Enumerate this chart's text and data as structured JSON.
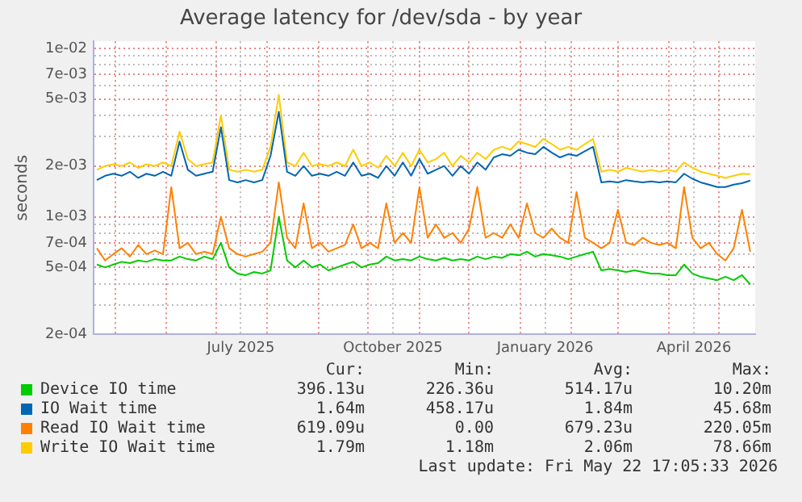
{
  "chart_data": {
    "type": "line",
    "title": "Average latency for /dev/sda - by year",
    "ylabel": "seconds",
    "log": "y",
    "grid": true,
    "legend": "bottom",
    "xlim": [
      "2025-04-18",
      "2026-05-23"
    ],
    "ylim": [
      0.0002,
      0.011
    ],
    "xticks": [
      {
        "value": "2025-05-01",
        "label": null
      },
      {
        "value": "2025-06-01",
        "label": null
      },
      {
        "value": "2025-07-01",
        "label": null
      },
      {
        "value": "2025-07-16",
        "label": "July 2025"
      },
      {
        "value": "2025-08-01",
        "label": null
      },
      {
        "value": "2025-09-01",
        "label": null
      },
      {
        "value": "2025-10-01",
        "label": null
      },
      {
        "value": "2025-10-16",
        "label": "October 2025"
      },
      {
        "value": "2025-11-01",
        "label": null
      },
      {
        "value": "2025-12-01",
        "label": null
      },
      {
        "value": "2026-01-01",
        "label": null
      },
      {
        "value": "2026-01-16",
        "label": "January 2026"
      },
      {
        "value": "2026-02-01",
        "label": null
      },
      {
        "value": "2026-03-01",
        "label": null
      },
      {
        "value": "2026-04-01",
        "label": null
      },
      {
        "value": "2026-04-16",
        "label": "April 2026"
      },
      {
        "value": "2026-05-01",
        "label": null
      }
    ],
    "yticks": [
      {
        "value": 0.0002,
        "label": "2e-04"
      },
      {
        "value": 0.0003,
        "label": null
      },
      {
        "value": 0.0004,
        "label": null
      },
      {
        "value": 0.0005,
        "label": "5e-04"
      },
      {
        "value": 0.0006,
        "label": null
      },
      {
        "value": 0.0007,
        "label": "7e-04"
      },
      {
        "value": 0.0008,
        "label": null
      },
      {
        "value": 0.0009,
        "label": null
      },
      {
        "value": 0.001,
        "label": "1e-03"
      },
      {
        "value": 0.002,
        "label": "2e-03"
      },
      {
        "value": 0.003,
        "label": null
      },
      {
        "value": 0.004,
        "label": null
      },
      {
        "value": 0.005,
        "label": "5e-03"
      },
      {
        "value": 0.006,
        "label": null
      },
      {
        "value": 0.007,
        "label": "7e-03"
      },
      {
        "value": 0.008,
        "label": null
      },
      {
        "value": 0.009,
        "label": null
      },
      {
        "value": 0.01,
        "label": "1e-02"
      }
    ],
    "x": [
      "2025-04-20",
      "2025-04-25",
      "2025-04-30",
      "2025-05-05",
      "2025-05-10",
      "2025-05-15",
      "2025-05-20",
      "2025-05-25",
      "2025-05-30",
      "2025-06-04",
      "2025-06-09",
      "2025-06-14",
      "2025-06-19",
      "2025-06-24",
      "2025-06-29",
      "2025-07-04",
      "2025-07-09",
      "2025-07-14",
      "2025-07-19",
      "2025-07-24",
      "2025-07-29",
      "2025-08-03",
      "2025-08-08",
      "2025-08-13",
      "2025-08-18",
      "2025-08-23",
      "2025-08-28",
      "2025-09-02",
      "2025-09-07",
      "2025-09-12",
      "2025-09-17",
      "2025-09-22",
      "2025-09-27",
      "2025-10-02",
      "2025-10-07",
      "2025-10-12",
      "2025-10-17",
      "2025-10-22",
      "2025-10-27",
      "2025-11-01",
      "2025-11-06",
      "2025-11-11",
      "2025-11-16",
      "2025-11-21",
      "2025-11-26",
      "2025-12-01",
      "2025-12-06",
      "2025-12-11",
      "2025-12-16",
      "2025-12-21",
      "2025-12-26",
      "2025-12-31",
      "2026-01-05",
      "2026-01-10",
      "2026-01-15",
      "2026-01-20",
      "2026-01-25",
      "2026-01-30",
      "2026-02-04",
      "2026-02-09",
      "2026-02-14",
      "2026-02-19",
      "2026-02-24",
      "2026-03-01",
      "2026-03-06",
      "2026-03-11",
      "2026-03-16",
      "2026-03-21",
      "2026-03-26",
      "2026-03-31",
      "2026-04-05",
      "2026-04-10",
      "2026-04-15",
      "2026-04-20",
      "2026-04-25",
      "2026-04-30",
      "2026-05-05",
      "2026-05-10",
      "2026-05-15",
      "2026-05-20"
    ],
    "series": [
      {
        "name": "Device IO time",
        "color": "#00cc00",
        "values": [
          0.00052,
          0.0005,
          0.00052,
          0.00054,
          0.00053,
          0.00055,
          0.00054,
          0.00056,
          0.00055,
          0.00055,
          0.00058,
          0.00056,
          0.00055,
          0.00058,
          0.00056,
          0.0007,
          0.0005,
          0.00046,
          0.00045,
          0.00047,
          0.00046,
          0.00048,
          0.001,
          0.00055,
          0.0005,
          0.00055,
          0.0005,
          0.00052,
          0.00048,
          0.0005,
          0.00052,
          0.00054,
          0.0005,
          0.00052,
          0.00053,
          0.00058,
          0.00055,
          0.00056,
          0.00055,
          0.00058,
          0.00056,
          0.00055,
          0.00057,
          0.00055,
          0.00056,
          0.00055,
          0.00058,
          0.00056,
          0.00058,
          0.00057,
          0.0006,
          0.00059,
          0.00062,
          0.00058,
          0.0006,
          0.00059,
          0.00058,
          0.00056,
          0.00058,
          0.0006,
          0.00062,
          0.00048,
          0.00049,
          0.00048,
          0.00047,
          0.00048,
          0.00047,
          0.00046,
          0.00046,
          0.00045,
          0.00045,
          0.00052,
          0.00046,
          0.00044,
          0.00043,
          0.00042,
          0.00044,
          0.00042,
          0.00045,
          0.000396
        ]
      },
      {
        "name": "IO Wait time",
        "color": "#0066b3",
        "values": [
          0.00165,
          0.00175,
          0.0018,
          0.00175,
          0.00185,
          0.0017,
          0.0018,
          0.00175,
          0.00185,
          0.00175,
          0.0028,
          0.0019,
          0.00175,
          0.0018,
          0.00185,
          0.0034,
          0.00165,
          0.0016,
          0.00165,
          0.0016,
          0.00165,
          0.0023,
          0.0042,
          0.00185,
          0.00175,
          0.002,
          0.00175,
          0.0018,
          0.00175,
          0.00185,
          0.00175,
          0.0021,
          0.00175,
          0.0018,
          0.0017,
          0.002,
          0.00175,
          0.0021,
          0.00175,
          0.0022,
          0.0018,
          0.0019,
          0.002,
          0.00175,
          0.002,
          0.0018,
          0.0021,
          0.0019,
          0.00225,
          0.00235,
          0.0023,
          0.0025,
          0.0024,
          0.00235,
          0.0026,
          0.0024,
          0.00225,
          0.00235,
          0.0023,
          0.00245,
          0.0026,
          0.0016,
          0.00162,
          0.0016,
          0.00165,
          0.00162,
          0.0016,
          0.00162,
          0.0016,
          0.00162,
          0.0016,
          0.0018,
          0.00168,
          0.0016,
          0.00155,
          0.0015,
          0.0015,
          0.00155,
          0.00158,
          0.00164
        ]
      },
      {
        "name": "Read IO Wait time",
        "color": "#ff8000",
        "values": [
          0.00065,
          0.00055,
          0.0006,
          0.00065,
          0.00058,
          0.00068,
          0.0006,
          0.00063,
          0.0006,
          0.0015,
          0.00065,
          0.0007,
          0.0006,
          0.00062,
          0.0006,
          0.001,
          0.00065,
          0.0006,
          0.00058,
          0.0006,
          0.00062,
          0.0007,
          0.0016,
          0.00075,
          0.00065,
          0.0012,
          0.00065,
          0.0007,
          0.00062,
          0.00065,
          0.00068,
          0.0009,
          0.00065,
          0.0007,
          0.00065,
          0.0012,
          0.0007,
          0.0008,
          0.0007,
          0.0015,
          0.00075,
          0.0009,
          0.00075,
          0.0008,
          0.0007,
          0.00085,
          0.0015,
          0.00075,
          0.0008,
          0.00075,
          0.0009,
          0.00075,
          0.0012,
          0.0008,
          0.00075,
          0.00085,
          0.00075,
          0.0007,
          0.0014,
          0.00075,
          0.0007,
          0.00065,
          0.0007,
          0.0011,
          0.0007,
          0.00068,
          0.00075,
          0.0007,
          0.00068,
          0.0007,
          0.00065,
          0.0015,
          0.00075,
          0.00065,
          0.0007,
          0.0006,
          0.00055,
          0.00065,
          0.0011,
          0.000619
        ]
      },
      {
        "name": "Write IO Wait time",
        "color": "#ffcc00",
        "values": [
          0.0019,
          0.002,
          0.00205,
          0.002,
          0.0021,
          0.00195,
          0.00205,
          0.002,
          0.0021,
          0.002,
          0.0032,
          0.0022,
          0.002,
          0.00205,
          0.0021,
          0.004,
          0.0019,
          0.00185,
          0.0019,
          0.00185,
          0.0019,
          0.0026,
          0.0053,
          0.0021,
          0.002,
          0.0024,
          0.002,
          0.00205,
          0.002,
          0.0021,
          0.002,
          0.0025,
          0.002,
          0.0021,
          0.00195,
          0.0023,
          0.002,
          0.0024,
          0.002,
          0.0025,
          0.0021,
          0.0022,
          0.0024,
          0.002,
          0.0023,
          0.0021,
          0.0024,
          0.0022,
          0.0025,
          0.0026,
          0.0025,
          0.0028,
          0.0027,
          0.0026,
          0.0029,
          0.0027,
          0.0025,
          0.0026,
          0.0025,
          0.0027,
          0.0029,
          0.00185,
          0.0019,
          0.00185,
          0.00195,
          0.0019,
          0.00185,
          0.0019,
          0.00185,
          0.0019,
          0.00185,
          0.0021,
          0.00195,
          0.00185,
          0.0018,
          0.00175,
          0.0017,
          0.00175,
          0.0018,
          0.00179
        ]
      }
    ],
    "annotations": [
      "Cur:",
      "Min:",
      "Avg:",
      "Max:",
      "396.13u",
      "226.36u",
      "514.17u",
      "10.20m",
      "1.64m",
      "458.17u",
      "1.84m",
      "45.68m",
      "619.09u",
      "0.00",
      "679.23u",
      "220.05m",
      "1.79m",
      "1.18m",
      "2.06m",
      "78.66m",
      "Last update: Fri May 22 17:05:33 2026"
    ]
  }
}
